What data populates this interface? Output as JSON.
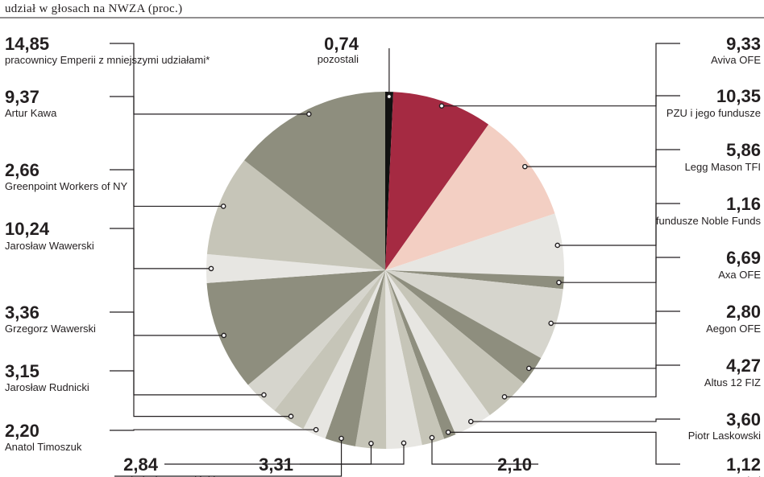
{
  "chart_data": {
    "type": "pie",
    "title": "udział w głosach na NWZA (proc.)",
    "slices": [
      {
        "label": "pozostali",
        "value": 0.74,
        "display": "0,74",
        "color": "#111111"
      },
      {
        "label": "Aviva OFE",
        "value": 9.33,
        "display": "9,33",
        "color": "#a52a42"
      },
      {
        "label": "PZU i jego fundusze",
        "value": 10.35,
        "display": "10,35",
        "color": "#f3cfc3"
      },
      {
        "label": "Legg Mason TFI",
        "value": 5.86,
        "display": "5,86",
        "color": "#e7e6e2"
      },
      {
        "label": "fundusze Noble Funds",
        "value": 1.16,
        "display": "1,16",
        "color": "#8e8e7e"
      },
      {
        "label": "Axa OFE",
        "value": 6.69,
        "display": "6,69",
        "color": "#d6d5cd"
      },
      {
        "label": "Aegon OFE",
        "value": 2.8,
        "display": "2,80",
        "color": "#8e8e7e"
      },
      {
        "label": "Altus 12 FIZ",
        "value": 4.27,
        "display": "4,27",
        "color": "#c6c5b8"
      },
      {
        "label": "Piotr Laskowski",
        "value": 3.6,
        "display": "3,60",
        "color": "#e7e6e2"
      },
      {
        "label": "AP Capital",
        "value": 1.12,
        "display": "1,12",
        "color": "#8e8e7e"
      },
      {
        "label": "",
        "value": 2.1,
        "display": "2,10",
        "color": "#c6c5b8"
      },
      {
        "label": "",
        "value": 3.31,
        "display": "3,31",
        "color": "#e7e6e2"
      },
      {
        "label": "",
        "value": 2.84,
        "display": "2,84",
        "color": "#c6c5b8"
      },
      {
        "label": "Władysław Wasiński",
        "value": 2.84,
        "display": "",
        "color": "#8e8e7e"
      },
      {
        "label": "Anatol Timoszuk",
        "value": 2.2,
        "display": "2,20",
        "color": "#e7e6e2"
      },
      {
        "label": "Jarosław Rudnicki",
        "value": 3.15,
        "display": "3,15",
        "color": "#c6c5b8"
      },
      {
        "label": "Grzegorz Wawerski",
        "value": 3.36,
        "display": "3,36",
        "color": "#d6d5cd"
      },
      {
        "label": "Jarosław Wawerski",
        "value": 10.24,
        "display": "10,24",
        "color": "#8e8e7e"
      },
      {
        "label": "Greenpoint Workers of NY",
        "value": 2.66,
        "display": "2,66",
        "color": "#e7e6e2"
      },
      {
        "label": "Artur Kawa",
        "value": 9.37,
        "display": "9,37",
        "color": "#c6c5b8"
      },
      {
        "label": "pracownicy Emperii z mniejszymi udziałami*",
        "value": 14.85,
        "display": "14,85",
        "color": "#8e8e7e"
      }
    ]
  }
}
